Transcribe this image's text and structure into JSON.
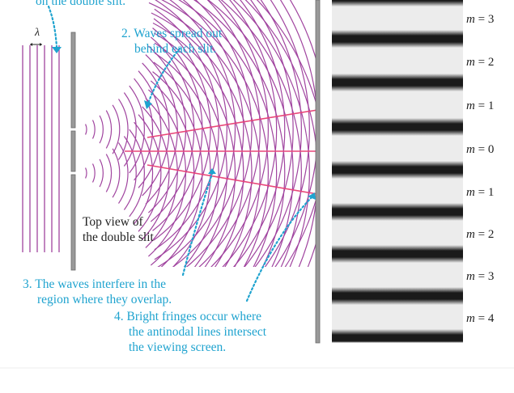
{
  "annotations": {
    "a1": "on the double slit.",
    "a2": [
      "2. Waves spread out",
      "behind each slit."
    ],
    "a3": [
      "3. The waves interfere in the",
      "region where they overlap."
    ],
    "a4": [
      "4. Bright fringes occur where",
      "the antinodal lines intersect",
      "the viewing screen."
    ]
  },
  "top_view_label": [
    "Top view of",
    "the double slit"
  ],
  "lambda_symbol": "λ",
  "fringe_orders": [
    {
      "name": "m",
      "eq": "=",
      "value": "3"
    },
    {
      "name": "m",
      "eq": "=",
      "value": "2"
    },
    {
      "name": "m",
      "eq": "=",
      "value": "1"
    },
    {
      "name": "m",
      "eq": "=",
      "value": "0"
    },
    {
      "name": "m",
      "eq": "=",
      "value": "1"
    },
    {
      "name": "m",
      "eq": "=",
      "value": "2"
    },
    {
      "name": "m",
      "eq": "=",
      "value": "3"
    },
    {
      "name": "m",
      "eq": "=",
      "value": "4"
    }
  ],
  "colors": {
    "wave": "#a0449f",
    "antinodal_line": "#e8477a",
    "annotation": "#1fa3cf",
    "barrier": "#8c8c8c",
    "dark_fringe": "#1a1a1a",
    "bright_fringe": "#ececec"
  }
}
